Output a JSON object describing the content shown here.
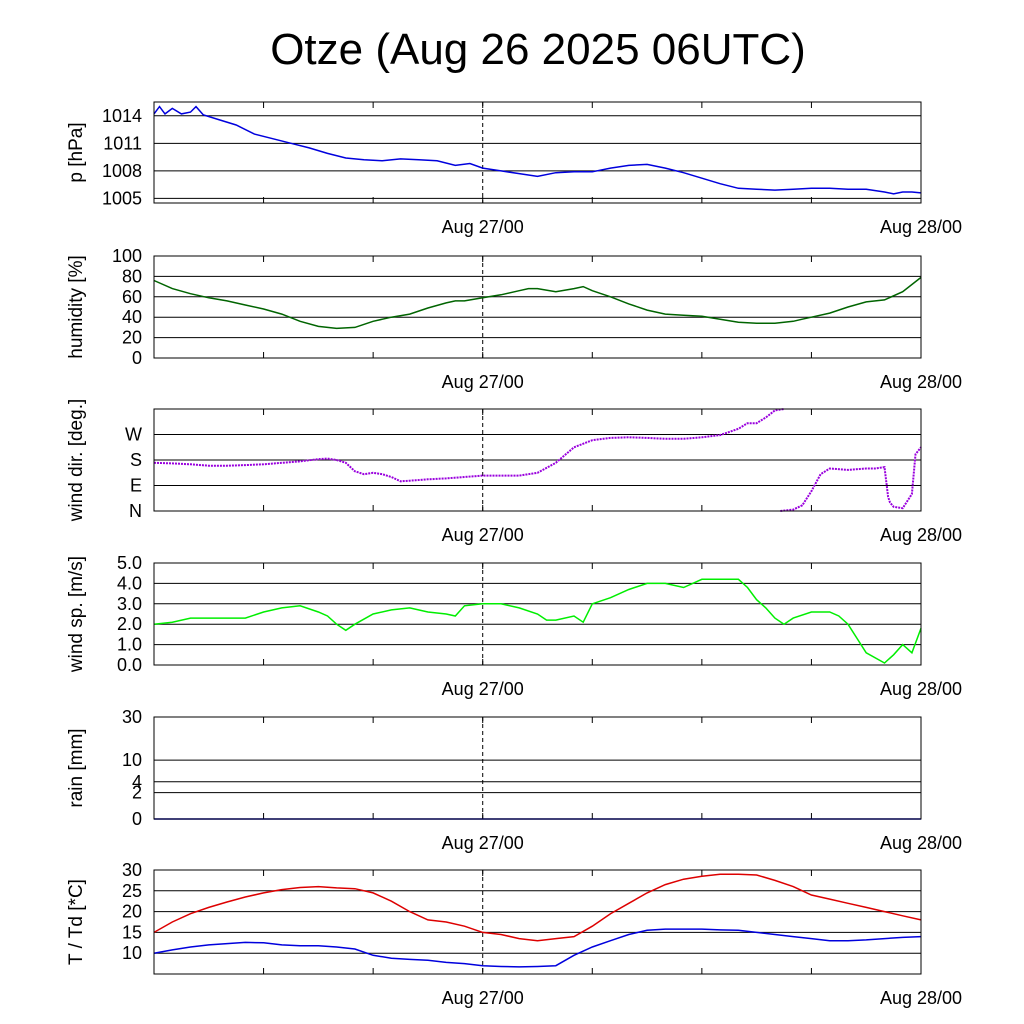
{
  "title": "Otze (Aug 26 2025 06UTC)",
  "chart_data": [
    {
      "id": "pressure",
      "type": "line",
      "ylabel": "p [hPa]",
      "ylim": [
        1004.5,
        1015.5
      ],
      "yticks": [
        {
          "v": 1005,
          "label": "1005"
        },
        {
          "v": 1008,
          "label": "1008"
        },
        {
          "v": 1011,
          "label": "1011"
        },
        {
          "v": 1014,
          "label": "1014"
        }
      ],
      "xlim": [
        0,
        42
      ],
      "xticks": [
        {
          "v": 18,
          "label": "Aug 27/00"
        },
        {
          "v": 42,
          "label": "Aug 28/00"
        }
      ],
      "series": [
        {
          "color": "#0000dd",
          "x": [
            0,
            0.3,
            0.6,
            1.0,
            1.5,
            2.0,
            2.3,
            2.7,
            3.5,
            4.5,
            5.5,
            6.5,
            7.5,
            8.5,
            9.5,
            10.5,
            11.5,
            12.5,
            13.5,
            14.5,
            15.5,
            16.5,
            17.3,
            18,
            19,
            20,
            21,
            22,
            23,
            24,
            25,
            26,
            27,
            28,
            29,
            30,
            31,
            32,
            33,
            34,
            35,
            36,
            37,
            38,
            39,
            40,
            40.5,
            41,
            41.5,
            42
          ],
          "y": [
            1014.2,
            1015.0,
            1014.2,
            1014.8,
            1014.2,
            1014.4,
            1015.0,
            1014.1,
            1013.6,
            1013.0,
            1012.0,
            1011.5,
            1011.0,
            1010.5,
            1009.9,
            1009.4,
            1009.2,
            1009.1,
            1009.3,
            1009.2,
            1009.1,
            1008.6,
            1008.8,
            1008.3,
            1008.0,
            1007.7,
            1007.4,
            1007.8,
            1007.9,
            1007.9,
            1008.3,
            1008.6,
            1008.7,
            1008.3,
            1007.8,
            1007.2,
            1006.6,
            1006.1,
            1006.0,
            1005.9,
            1006.0,
            1006.1,
            1006.1,
            1006.0,
            1006.0,
            1005.7,
            1005.5,
            1005.7,
            1005.7,
            1005.6
          ]
        }
      ]
    },
    {
      "id": "humidity",
      "type": "line",
      "ylabel": "humidity [%]",
      "ylim": [
        0,
        100
      ],
      "yticks": [
        {
          "v": 0,
          "label": "0"
        },
        {
          "v": 20,
          "label": "20"
        },
        {
          "v": 40,
          "label": "40"
        },
        {
          "v": 60,
          "label": "60"
        },
        {
          "v": 80,
          "label": "80"
        },
        {
          "v": 100,
          "label": "100"
        }
      ],
      "xlim": [
        0,
        42
      ],
      "xticks": [
        {
          "v": 18,
          "label": "Aug 27/00"
        },
        {
          "v": 42,
          "label": "Aug 28/00"
        }
      ],
      "series": [
        {
          "color": "#006400",
          "x": [
            0,
            1,
            2,
            3,
            4,
            5,
            6,
            7,
            8,
            9,
            10,
            11,
            12,
            13,
            14,
            15,
            16,
            16.5,
            17,
            18,
            19,
            20,
            20.5,
            21,
            22,
            23,
            23.5,
            24,
            25,
            26,
            27,
            28,
            29,
            30,
            31,
            32,
            33,
            34,
            35,
            35.5,
            36,
            37,
            38,
            39,
            40,
            41,
            42
          ],
          "y": [
            76,
            68,
            63,
            59,
            56,
            52,
            48,
            43,
            36,
            31,
            29,
            30,
            36,
            40,
            43,
            49,
            54,
            56,
            56,
            59,
            62,
            66,
            68,
            68,
            65,
            68,
            70,
            66,
            60,
            53,
            47,
            43,
            42,
            41,
            38,
            35,
            34,
            34,
            36,
            38,
            40,
            44,
            50,
            55,
            57,
            65,
            79
          ]
        }
      ]
    },
    {
      "id": "wind-direction",
      "type": "scatter",
      "ylabel": "wind dir. [deg.]",
      "ylim": [
        0,
        360
      ],
      "yticks": [
        {
          "v": 0,
          "label": "N"
        },
        {
          "v": 90,
          "label": "E"
        },
        {
          "v": 180,
          "label": "S"
        },
        {
          "v": 270,
          "label": "W"
        }
      ],
      "xlim": [
        0,
        42
      ],
      "xticks": [
        {
          "v": 18,
          "label": "Aug 27/00"
        },
        {
          "v": 42,
          "label": "Aug 28/00"
        }
      ],
      "series": [
        {
          "color": "#9900dd",
          "x": [
            0,
            1,
            2,
            3,
            4,
            5,
            6,
            7,
            8,
            9,
            9.5,
            10,
            10.5,
            11,
            11.5,
            12,
            12.5,
            13,
            13.5,
            14,
            15,
            16,
            17,
            18,
            19,
            20,
            21,
            22,
            23,
            24,
            25,
            26,
            27,
            28,
            29,
            30,
            31,
            32,
            32.5,
            33,
            33.5,
            34,
            34.5
          ],
          "y": [
            170,
            168,
            165,
            160,
            160,
            162,
            165,
            170,
            175,
            183,
            185,
            180,
            170,
            140,
            130,
            135,
            130,
            120,
            105,
            107,
            112,
            115,
            120,
            125,
            125,
            125,
            135,
            170,
            225,
            250,
            258,
            260,
            258,
            255,
            255,
            260,
            268,
            290,
            310,
            310,
            330,
            355,
            360
          ]
        },
        {
          "color": "#9900dd",
          "x": [
            34.3,
            35,
            35.5,
            36,
            36.5,
            37,
            38,
            39,
            39.5,
            40,
            40.2,
            40.3,
            40.5,
            41,
            41.5,
            41.7,
            42
          ],
          "y": [
            0,
            5,
            20,
            70,
            130,
            150,
            145,
            150,
            150,
            155,
            50,
            30,
            15,
            10,
            60,
            200,
            225
          ]
        }
      ]
    },
    {
      "id": "wind-speed",
      "type": "line",
      "ylabel": "wind sp. [m/s]",
      "ylim": [
        0,
        5
      ],
      "yticks": [
        {
          "v": 0,
          "label": "0.0"
        },
        {
          "v": 1,
          "label": "1.0"
        },
        {
          "v": 2,
          "label": "2.0"
        },
        {
          "v": 3,
          "label": "3.0"
        },
        {
          "v": 4,
          "label": "4.0"
        },
        {
          "v": 5,
          "label": "5.0"
        }
      ],
      "xlim": [
        0,
        42
      ],
      "xticks": [
        {
          "v": 18,
          "label": "Aug 27/00"
        },
        {
          "v": 42,
          "label": "Aug 28/00"
        }
      ],
      "series": [
        {
          "color": "#00ee00",
          "x": [
            0,
            1,
            2,
            3,
            4,
            5,
            6,
            7,
            8,
            9,
            9.5,
            10,
            10.5,
            11,
            12,
            13,
            14,
            15,
            16,
            16.5,
            17,
            18,
            19,
            20,
            21,
            21.5,
            22,
            23,
            23.5,
            24,
            25,
            26,
            27,
            28,
            29,
            30,
            31,
            32,
            32.5,
            33,
            33.5,
            34,
            34.5,
            35,
            36,
            37,
            37.5,
            38,
            38.5,
            39,
            40,
            40.5,
            41,
            41.5,
            42
          ],
          "y": [
            2.0,
            2.1,
            2.3,
            2.3,
            2.3,
            2.3,
            2.6,
            2.8,
            2.9,
            2.6,
            2.4,
            2.0,
            1.7,
            2.0,
            2.5,
            2.7,
            2.8,
            2.6,
            2.5,
            2.4,
            2.9,
            3.0,
            3.0,
            2.8,
            2.5,
            2.2,
            2.2,
            2.4,
            2.1,
            3.0,
            3.3,
            3.7,
            4.0,
            4.0,
            3.8,
            4.2,
            4.2,
            4.2,
            3.8,
            3.2,
            2.8,
            2.3,
            2.0,
            2.3,
            2.6,
            2.6,
            2.4,
            2.0,
            1.3,
            0.6,
            0.1,
            0.5,
            1.0,
            0.6,
            1.8
          ]
        }
      ]
    },
    {
      "id": "rain",
      "type": "line",
      "ylabel": "rain [mm]",
      "scale": "sqrt",
      "ylim": [
        0,
        30
      ],
      "yticks": [
        {
          "v": 0,
          "label": "0"
        },
        {
          "v": 2,
          "label": "2"
        },
        {
          "v": 4,
          "label": "4"
        },
        {
          "v": 10,
          "label": "10"
        },
        {
          "v": 30,
          "label": "30"
        }
      ],
      "xlim": [
        0,
        42
      ],
      "xticks": [
        {
          "v": 18,
          "label": "Aug 27/00"
        },
        {
          "v": 42,
          "label": "Aug 28/00"
        }
      ],
      "series": [
        {
          "color": "#0000dd",
          "x": [
            0,
            42
          ],
          "y": [
            0,
            0
          ]
        }
      ]
    },
    {
      "id": "temperature",
      "type": "line",
      "ylabel": "T / Td [*C]",
      "ylim": [
        5,
        30
      ],
      "yticks": [
        {
          "v": 10,
          "label": "10"
        },
        {
          "v": 15,
          "label": "15"
        },
        {
          "v": 20,
          "label": "20"
        },
        {
          "v": 25,
          "label": "25"
        },
        {
          "v": 30,
          "label": "30"
        }
      ],
      "xlim": [
        0,
        42
      ],
      "xticks": [
        {
          "v": 18,
          "label": "Aug 27/00"
        },
        {
          "v": 42,
          "label": "Aug 28/00"
        }
      ],
      "series": [
        {
          "color": "#dd0000",
          "x": [
            0,
            1,
            2,
            3,
            4,
            5,
            6,
            7,
            8,
            9,
            10,
            11,
            12,
            13,
            14,
            15,
            16,
            17,
            18,
            19,
            20,
            21,
            22,
            23,
            24,
            25,
            26,
            27,
            28,
            29,
            30,
            31,
            32,
            33,
            34,
            35,
            36,
            37,
            38,
            39,
            40,
            41,
            42
          ],
          "y": [
            15.0,
            17.5,
            19.5,
            21.0,
            22.3,
            23.5,
            24.5,
            25.3,
            25.8,
            26.0,
            25.7,
            25.5,
            24.5,
            22.5,
            20.0,
            18.0,
            17.5,
            16.5,
            15.0,
            14.5,
            13.5,
            13.0,
            13.5,
            14.0,
            16.5,
            19.5,
            22.0,
            24.5,
            26.5,
            27.8,
            28.5,
            29.0,
            29.0,
            28.8,
            27.5,
            26.0,
            24.0,
            23.0,
            22.0,
            21.0,
            20.0,
            19.0,
            18.0
          ]
        },
        {
          "color": "#0000dd",
          "x": [
            0,
            1,
            2,
            3,
            4,
            5,
            6,
            7,
            8,
            9,
            10,
            11,
            12,
            13,
            14,
            15,
            16,
            17,
            18,
            19,
            20,
            21,
            22,
            23,
            24,
            25,
            26,
            27,
            28,
            29,
            30,
            31,
            32,
            33,
            34,
            35,
            36,
            37,
            38,
            39,
            40,
            41,
            42
          ],
          "y": [
            10.0,
            10.8,
            11.5,
            12.0,
            12.3,
            12.6,
            12.5,
            12.0,
            11.8,
            11.8,
            11.5,
            11.0,
            9.5,
            8.8,
            8.5,
            8.3,
            7.8,
            7.5,
            7.0,
            6.8,
            6.7,
            6.8,
            7.0,
            9.5,
            11.5,
            13.0,
            14.5,
            15.5,
            15.8,
            15.8,
            15.8,
            15.6,
            15.5,
            15.0,
            14.5,
            14.0,
            13.5,
            13.0,
            13.0,
            13.2,
            13.5,
            13.8,
            14.0
          ]
        }
      ]
    }
  ]
}
